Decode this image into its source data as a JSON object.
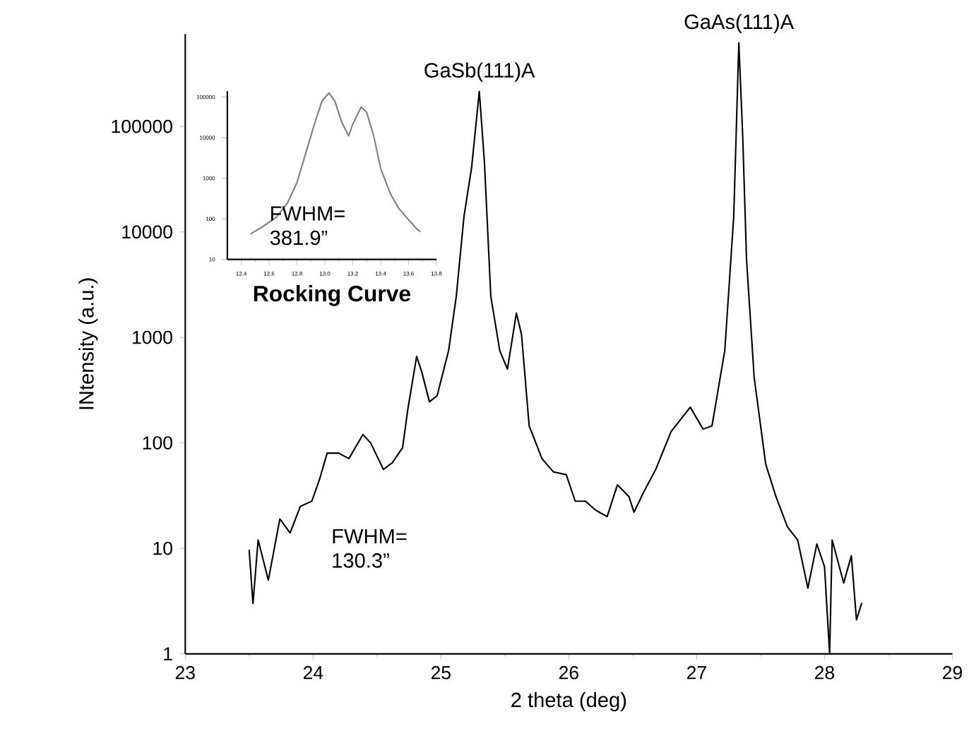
{
  "chart_data": [
    {
      "type": "line",
      "xlabel": "2 theta (deg)",
      "ylabel": "INtensity (a.u.)",
      "log": "y",
      "xlim": [
        23,
        29
      ],
      "ylim": [
        1,
        750000
      ],
      "xticks": [
        23,
        24,
        25,
        26,
        27,
        28,
        29
      ],
      "yticks": [
        1,
        10,
        100,
        1000,
        10000,
        100000
      ],
      "series": [
        {
          "color": "#000000",
          "x": [
            23.5,
            23.53,
            23.57,
            23.65,
            23.74,
            23.82,
            23.9,
            23.99,
            24.05,
            24.11,
            24.2,
            24.28,
            24.39,
            24.45,
            24.55,
            24.62,
            24.7,
            24.74,
            24.81,
            24.85,
            24.91,
            24.97,
            25.06,
            25.12,
            25.18,
            25.24,
            25.3,
            25.34,
            25.39,
            25.46,
            25.52,
            25.59,
            25.63,
            25.69,
            25.79,
            25.88,
            25.98,
            26.05,
            26.13,
            26.21,
            26.3,
            26.38,
            26.47,
            26.51,
            26.59,
            26.68,
            26.8,
            26.95,
            27.05,
            27.12,
            27.22,
            27.29,
            27.33,
            27.36,
            27.39,
            27.45,
            27.54,
            27.62,
            27.71,
            27.79,
            27.87,
            27.94,
            28.0,
            28.04,
            28.06,
            28.15,
            28.21,
            28.25,
            28.29
          ],
          "values": [
            9.6,
            3,
            12,
            5,
            19,
            14,
            25,
            28,
            45,
            80,
            80,
            71,
            120,
            100,
            56,
            65,
            90,
            205,
            660,
            470,
            245,
            280,
            750,
            2450,
            14000,
            41000,
            215000,
            46000,
            2450,
            750,
            500,
            1700,
            1070,
            145,
            71,
            53,
            50,
            28,
            28,
            23,
            20,
            40,
            31,
            22,
            35,
            56,
            128,
            218,
            135,
            145,
            750,
            14000,
            620000,
            83000,
            5500,
            415,
            63,
            31,
            16,
            12,
            4.2,
            11,
            6.7,
            1,
            12,
            4.7,
            8.5,
            2.1,
            3
          ]
        }
      ],
      "annotations": [
        {
          "text": "GaSb(111)A",
          "x": 25.3,
          "y": 215000
        },
        {
          "text": "GaAs(111)A",
          "x": 27.33,
          "y": 620000
        },
        "FWHM= 130.3”"
      ]
    },
    {
      "type": "line",
      "title": "Rocking Curve",
      "log": "y",
      "xlim": [
        12.3,
        13.8
      ],
      "ylim": [
        10,
        140000
      ],
      "xticks": [
        12.4,
        12.6,
        12.8,
        {
          "value": 13,
          "label": "13.0"
        },
        13.2,
        13.4,
        13.6,
        13.8
      ],
      "yticks": [
        10,
        100,
        1000,
        10000,
        100000
      ],
      "series": [
        {
          "color": "#808080",
          "x": [
            12.47,
            12.55,
            12.65,
            12.73,
            12.8,
            12.86,
            12.93,
            12.98,
            13.03,
            13.07,
            13.12,
            13.17,
            13.2,
            13.26,
            13.3,
            13.35,
            13.4,
            13.47,
            13.53,
            13.6,
            13.66,
            13.68
          ],
          "values": [
            43,
            63,
            108,
            240,
            790,
            3900,
            24500,
            81000,
            126000,
            81000,
            24500,
            11000,
            21500,
            57000,
            42000,
            11000,
            1740,
            410,
            180,
            95,
            56,
            49
          ]
        }
      ],
      "annotations": [
        "FWHM= 381.9”"
      ]
    }
  ]
}
